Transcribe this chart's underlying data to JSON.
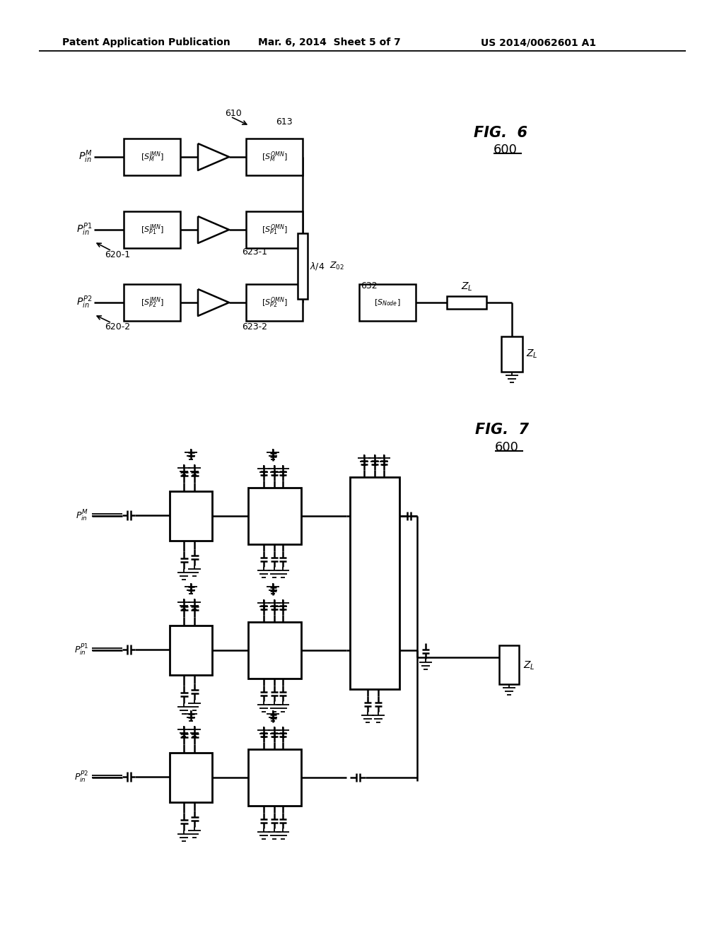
{
  "background_color": "#ffffff",
  "header_left": "Patent Application Publication",
  "header_mid": "Mar. 6, 2014  Sheet 5 of 7",
  "header_right": "US 2014/0062601 A1",
  "fig6_label": "FIG.  6",
  "fig6_num": "600",
  "fig7_label": "FIG.  7",
  "fig7_num": "600"
}
